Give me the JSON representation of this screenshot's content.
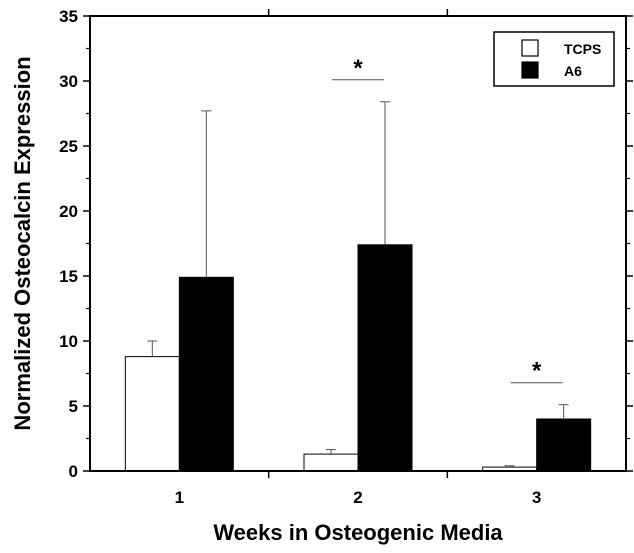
{
  "chart_data": {
    "type": "bar",
    "title": "",
    "xlabel": "Weeks in Osteogenic Media",
    "ylabel": "Normalized Osteocalcin Expression",
    "categories": [
      "1",
      "2",
      "3"
    ],
    "ylim": [
      0,
      35
    ],
    "yticks": [
      "0",
      "5",
      "10",
      "15",
      "20",
      "25",
      "30",
      "35"
    ],
    "series": [
      {
        "name": "TCPS",
        "fill": "#ffffff",
        "values": [
          8.8,
          1.3,
          0.3
        ],
        "errors": [
          1.2,
          0.35,
          0.1
        ]
      },
      {
        "name": "A6",
        "fill": "#000000",
        "values": [
          14.9,
          17.4,
          4.0
        ],
        "errors": [
          12.8,
          11.0,
          1.1
        ]
      }
    ],
    "significance": [
      {
        "category": "2",
        "label": "*"
      },
      {
        "category": "3",
        "label": "*"
      }
    ],
    "legend_position": "top-right",
    "grid": false
  }
}
